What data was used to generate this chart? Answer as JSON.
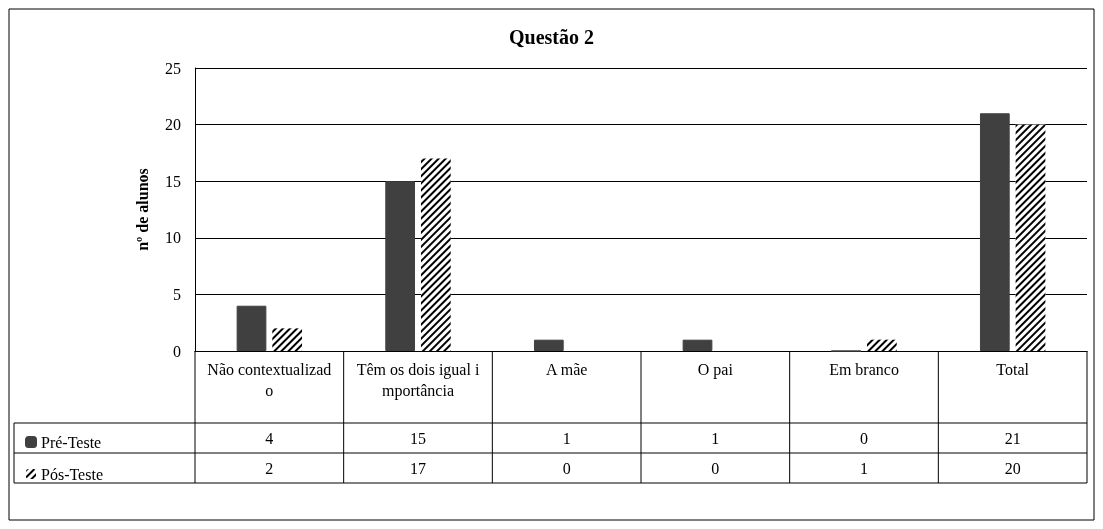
{
  "chart_data": {
    "type": "bar",
    "title": "Questão 2",
    "ylabel": "nº de alunos",
    "categories": [
      "Não contextualizado",
      "Têm os dois igual importância",
      "A mãe",
      "O pai",
      "Em branco",
      "Total"
    ],
    "series": [
      {
        "name": "Pré-Teste",
        "color": "#404040",
        "values": [
          4,
          15,
          1,
          1,
          0,
          21
        ]
      },
      {
        "name": "Pós-Teste",
        "color": "#000000",
        "values": [
          2,
          17,
          0,
          0,
          1,
          20
        ]
      }
    ],
    "ylim": [
      0,
      25
    ],
    "yticks": [
      0,
      5,
      10,
      15,
      20,
      25
    ],
    "grid": "y",
    "legend": "bottom left",
    "data_labels": true
  }
}
